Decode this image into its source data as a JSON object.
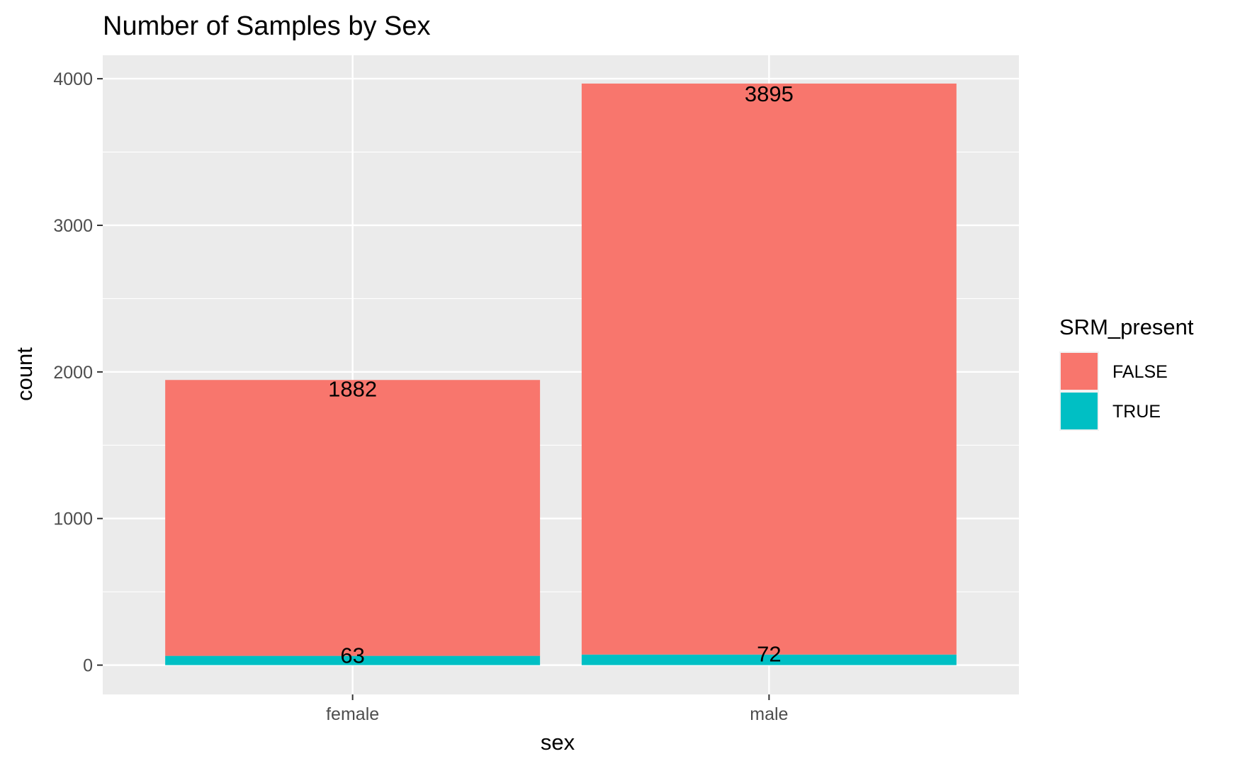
{
  "chart_data": {
    "type": "bar",
    "stacked": true,
    "title": "Number of Samples by Sex",
    "xlabel": "sex",
    "ylabel": "count",
    "categories": [
      "female",
      "male"
    ],
    "series": [
      {
        "name": "FALSE",
        "values": [
          1882,
          3895
        ],
        "color": "#F8766D",
        "labels": [
          "1882",
          "3895"
        ]
      },
      {
        "name": "TRUE",
        "values": [
          63,
          72
        ],
        "color": "#00BFC4",
        "labels": [
          "63",
          "72"
        ]
      }
    ],
    "ylim": [
      -200,
      4160
    ],
    "yticks": [
      0,
      1000,
      2000,
      3000,
      4000
    ],
    "ytick_labels": [
      "0",
      "1000",
      "2000",
      "3000",
      "4000"
    ],
    "legend": {
      "title": "SRM_present",
      "placement": "right",
      "entries": [
        "FALSE",
        "TRUE"
      ]
    },
    "panel_background": "#EBEBEB",
    "grid_color": "#FFFFFF",
    "grid": true
  }
}
